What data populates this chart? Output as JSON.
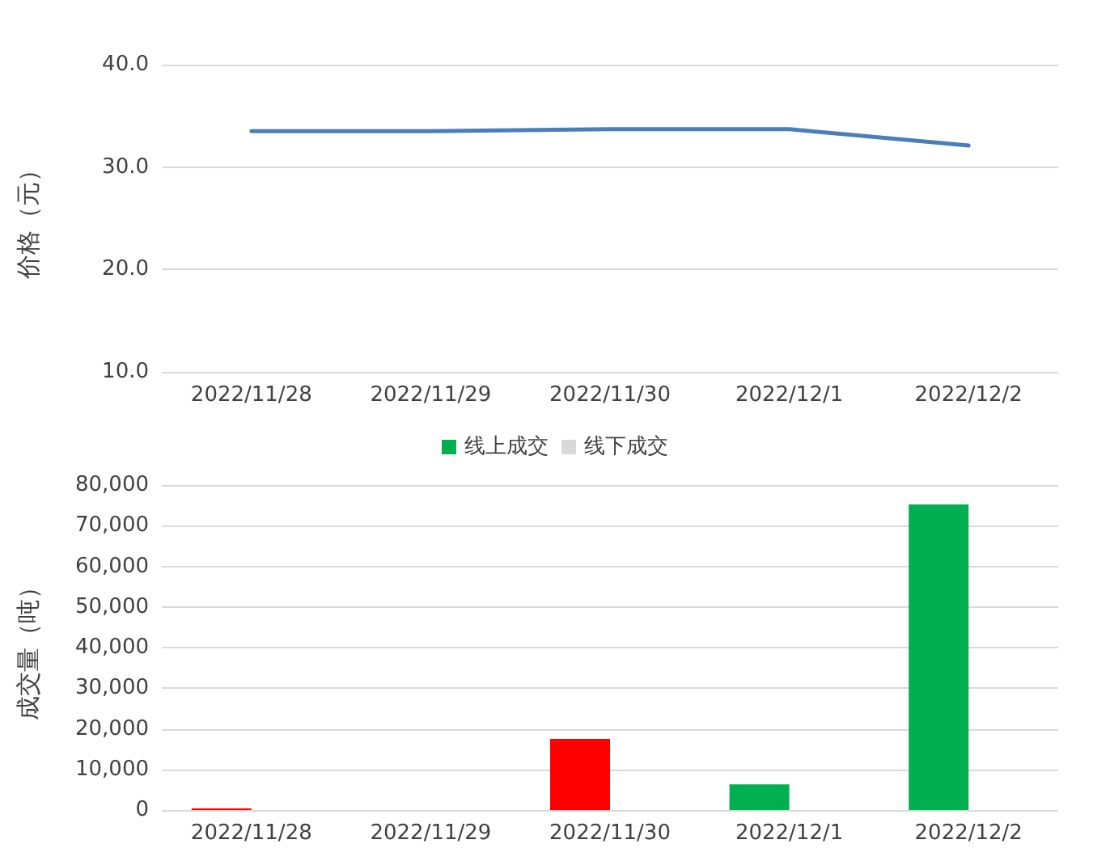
{
  "chart_data": [
    {
      "type": "line",
      "ylabel": "价格（元）",
      "categories": [
        "2022/11/28",
        "2022/11/29",
        "2022/11/30",
        "2022/12/1",
        "2022/12/2"
      ],
      "series": [
        {
          "color": "#4a7ebb",
          "values": [
            33.5,
            33.5,
            33.7,
            33.7,
            32.1
          ]
        }
      ],
      "ylim": [
        10,
        40
      ],
      "yticks": [
        {
          "value": 10,
          "label": "10.0"
        },
        {
          "value": 20,
          "label": "20.0"
        },
        {
          "value": 30,
          "label": "30.0"
        },
        {
          "value": 40,
          "label": "40.0"
        }
      ],
      "grid": "y",
      "legend": false,
      "marker": "none",
      "line_style": "solid"
    },
    {
      "type": "bar",
      "ylabel": "成交量（吨）",
      "categories": [
        "2022/11/28",
        "2022/11/29",
        "2022/11/30",
        "2022/12/1",
        "2022/12/2"
      ],
      "series": [
        {
          "name": "线上成交",
          "color": "#00b050",
          "colors": [
            "#ff0000",
            "#ff0000",
            "#ff0000",
            "#00b050",
            "#00b050"
          ],
          "values": [
            400,
            0,
            17500,
            6300,
            75200
          ]
        },
        {
          "name": "线下成交",
          "color": "#d9d9d9",
          "values": [
            null,
            null,
            null,
            null,
            null
          ]
        }
      ],
      "ylim": [
        0,
        80000
      ],
      "yticks": [
        0,
        {
          "value": 10000,
          "label": "10,000"
        },
        {
          "value": 20000,
          "label": "20,000"
        },
        {
          "value": 30000,
          "label": "30,000"
        },
        {
          "value": 40000,
          "label": "40,000"
        },
        {
          "value": 50000,
          "label": "50,000"
        },
        {
          "value": 60000,
          "label": "60,000"
        },
        {
          "value": 70000,
          "label": "70,000"
        },
        {
          "value": 80000,
          "label": "80,000"
        }
      ],
      "grid": "y",
      "legend": "top"
    }
  ]
}
